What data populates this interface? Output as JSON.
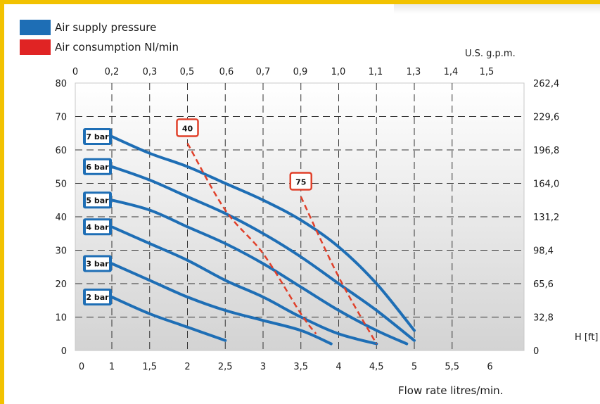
{
  "legend": [
    {
      "label": "Air supply pressure",
      "color": "#1e6eb5"
    },
    {
      "label": "Air consumption Nl/min",
      "color": "#e02424"
    }
  ],
  "chart_data": {
    "type": "line",
    "x_title": "Flow rate litres/min.",
    "top_axis_label": "U.S. g.p.m.",
    "right_axis_label": "H [ft]",
    "x_ticks": [
      "0",
      "1",
      "1,5",
      "2",
      "2,5",
      "3",
      "3,5",
      "4",
      "4,5",
      "5",
      "5,5",
      "6"
    ],
    "x_top_ticks": [
      "0",
      "0,2",
      "0,3",
      "0,5",
      "0,6",
      "0,7",
      "0,9",
      "1,0",
      "1,1",
      "1,3",
      "1,4",
      "1,5"
    ],
    "y_ticks": [
      "0",
      "10",
      "20",
      "30",
      "40",
      "50",
      "60",
      "70",
      "80"
    ],
    "y_right_ticks": [
      "0",
      "32,8",
      "65,6",
      "98,4",
      "131,2",
      "164,0",
      "196,8",
      "229,6",
      "262,4"
    ],
    "ylim": [
      0,
      80
    ],
    "grid": true,
    "series": [
      {
        "name": "2 bar",
        "kind": "pressure",
        "points": [
          [
            1,
            16
          ],
          [
            1.5,
            11
          ],
          [
            2,
            7
          ],
          [
            2.5,
            3
          ]
        ]
      },
      {
        "name": "3 bar",
        "kind": "pressure",
        "points": [
          [
            1,
            26
          ],
          [
            1.5,
            21
          ],
          [
            2,
            16
          ],
          [
            2.5,
            12
          ],
          [
            3,
            9
          ],
          [
            3.5,
            6
          ],
          [
            3.9,
            2
          ]
        ]
      },
      {
        "name": "4 bar",
        "kind": "pressure",
        "points": [
          [
            1,
            37
          ],
          [
            1.5,
            32
          ],
          [
            2,
            27
          ],
          [
            2.5,
            21
          ],
          [
            3,
            16
          ],
          [
            3.5,
            10
          ],
          [
            4,
            5
          ],
          [
            4.5,
            2
          ]
        ]
      },
      {
        "name": "5 bar",
        "kind": "pressure",
        "points": [
          [
            1,
            45
          ],
          [
            1.5,
            42
          ],
          [
            2,
            37
          ],
          [
            2.5,
            32
          ],
          [
            3,
            26
          ],
          [
            3.5,
            19
          ],
          [
            4,
            12
          ],
          [
            4.5,
            6
          ],
          [
            4.9,
            2
          ]
        ]
      },
      {
        "name": "6 bar",
        "kind": "pressure",
        "points": [
          [
            1,
            55
          ],
          [
            1.5,
            51
          ],
          [
            2,
            46
          ],
          [
            2.5,
            41
          ],
          [
            3,
            35
          ],
          [
            3.5,
            28
          ],
          [
            4,
            20
          ],
          [
            4.5,
            12
          ],
          [
            5,
            3
          ]
        ]
      },
      {
        "name": "7 bar",
        "kind": "pressure",
        "points": [
          [
            1,
            64
          ],
          [
            1.5,
            59
          ],
          [
            2,
            55
          ],
          [
            2.5,
            50
          ],
          [
            3,
            45
          ],
          [
            3.5,
            39
          ],
          [
            4,
            31
          ],
          [
            4.5,
            20
          ],
          [
            5,
            6
          ]
        ]
      },
      {
        "name": "40",
        "kind": "consumption",
        "points": [
          [
            2,
            62
          ],
          [
            2.5,
            42
          ],
          [
            3,
            29
          ],
          [
            3.5,
            11
          ],
          [
            3.7,
            5
          ]
        ]
      },
      {
        "name": "75",
        "kind": "consumption",
        "points": [
          [
            3.5,
            46
          ],
          [
            4,
            22
          ],
          [
            4.5,
            2
          ]
        ]
      }
    ]
  }
}
